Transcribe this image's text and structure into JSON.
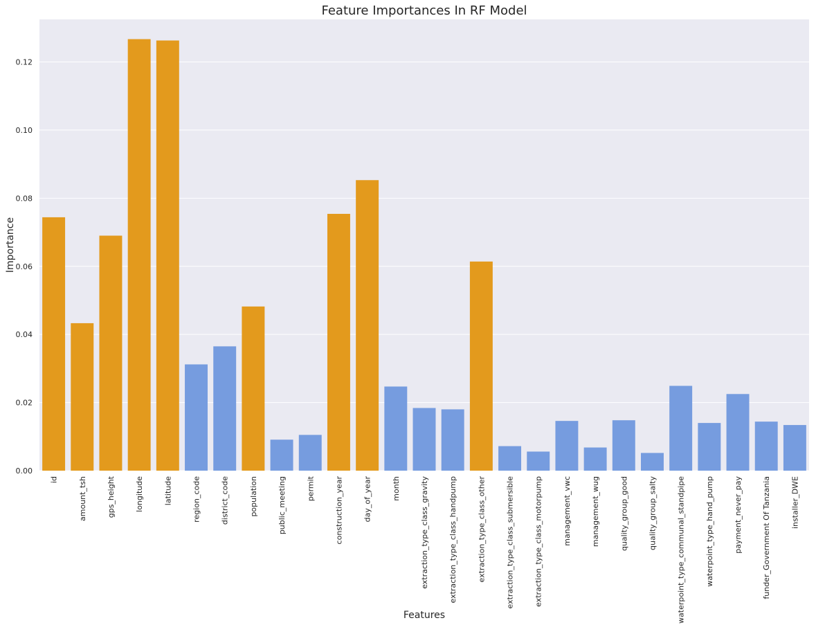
{
  "chart_data": {
    "type": "bar",
    "title": "Feature Importances In RF Model",
    "xlabel": "Features",
    "ylabel": "Importance",
    "ylim": [
      0,
      0.1325
    ],
    "yticks": [
      0.0,
      0.02,
      0.04,
      0.06,
      0.08,
      0.1,
      0.12
    ],
    "ytick_labels": [
      "0.00",
      "0.02",
      "0.04",
      "0.06",
      "0.08",
      "0.10",
      "0.12"
    ],
    "grid": true,
    "legend": "none",
    "background_color": "#EAEAF2",
    "grid_color": "#FFFFFF",
    "colors": {
      "orange": "#E39A1D",
      "blue": "#769CDF"
    },
    "categories": [
      "id",
      "amount_tsh",
      "gps_height",
      "longitude",
      "latitude",
      "region_code",
      "district_code",
      "population",
      "public_meeting",
      "permit",
      "construction_year",
      "day_of_year",
      "month",
      "extraction_type_class_gravity",
      "extraction_type_class_handpump",
      "extraction_type_class_other",
      "extraction_type_class_submersible",
      "extraction_type_class_motorpump",
      "management_vwc",
      "management_wug",
      "quality_group_good",
      "quality_group_salty",
      "waterpoint_type_communal_standpipe",
      "waterpoint_type_hand_pump",
      "payment_never_pay",
      "funder_Government Of Tanzania",
      "installer_DWE"
    ],
    "values": [
      0.0744,
      0.0433,
      0.069,
      0.1267,
      0.1263,
      0.0312,
      0.0365,
      0.0482,
      0.0091,
      0.0105,
      0.0754,
      0.0853,
      0.0247,
      0.0184,
      0.018,
      0.0614,
      0.0072,
      0.0056,
      0.0146,
      0.0068,
      0.0148,
      0.0052,
      0.0249,
      0.014,
      0.0225,
      0.0144,
      0.0134
    ],
    "bar_colors": [
      "#E39A1D",
      "#E39A1D",
      "#E39A1D",
      "#E39A1D",
      "#E39A1D",
      "#769CDF",
      "#769CDF",
      "#E39A1D",
      "#769CDF",
      "#769CDF",
      "#E39A1D",
      "#E39A1D",
      "#769CDF",
      "#769CDF",
      "#769CDF",
      "#E39A1D",
      "#769CDF",
      "#769CDF",
      "#769CDF",
      "#769CDF",
      "#769CDF",
      "#769CDF",
      "#769CDF",
      "#769CDF",
      "#769CDF",
      "#769CDF",
      "#769CDF"
    ]
  }
}
